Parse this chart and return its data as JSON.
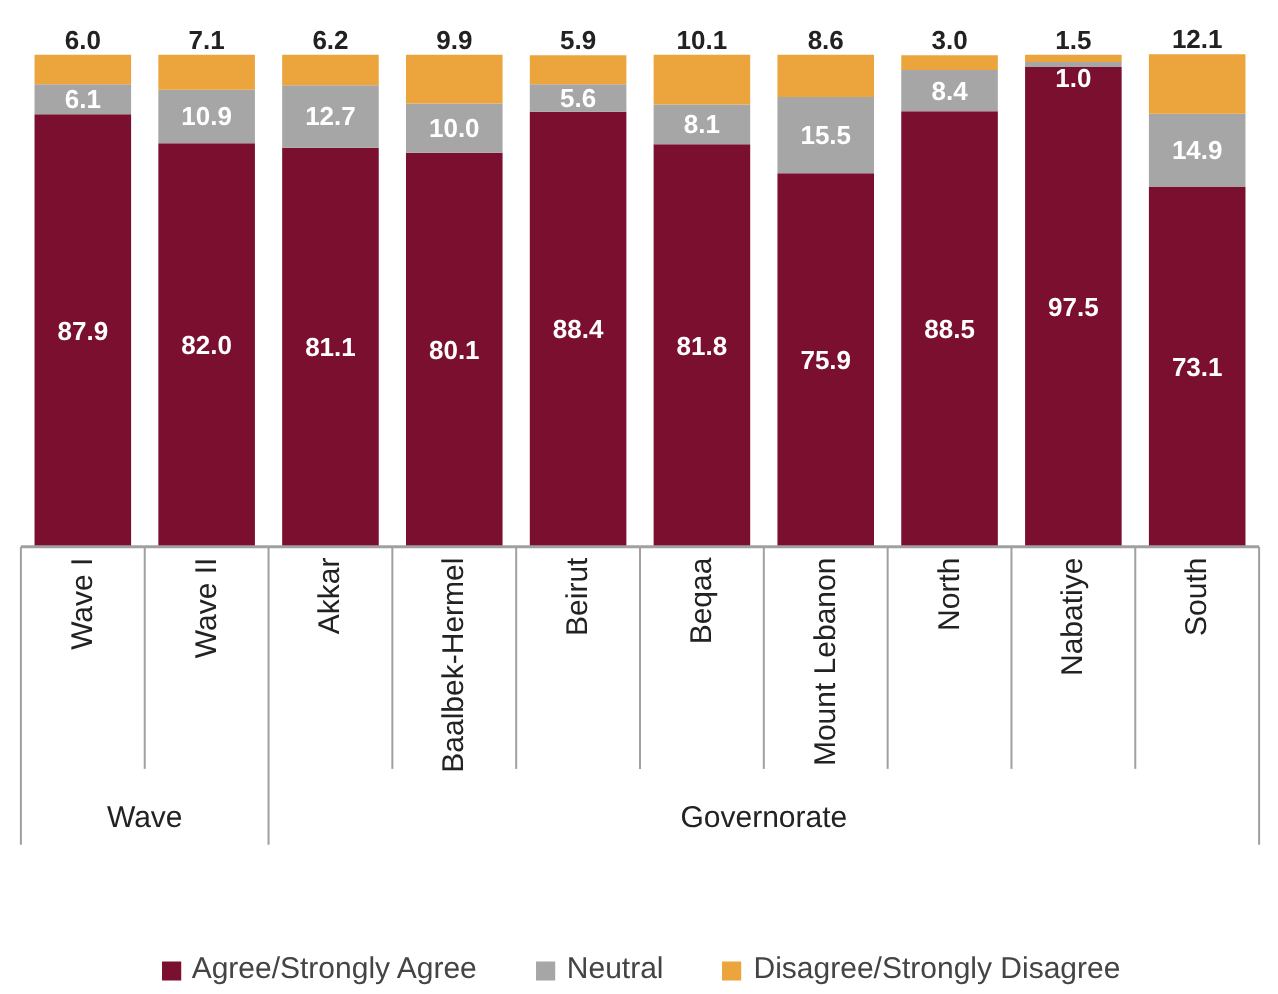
{
  "chart_data": {
    "type": "bar",
    "stacked": true,
    "grid": false,
    "legend": "bottom",
    "categories": [
      "Wave I",
      "Wave II",
      "Akkar",
      "Baalbek-Hermel",
      "Beirut",
      "Beqaa",
      "Mount Lebanon",
      "North",
      "Nabatiye",
      "South"
    ],
    "series": [
      {
        "name": "Agree/Strongly Agree",
        "color": "#7a0f2f",
        "values": [
          87.9,
          82.0,
          81.1,
          80.1,
          88.4,
          81.8,
          75.9,
          88.5,
          97.5,
          73.1
        ],
        "value_labels": [
          "87.9",
          "82.0",
          "81.1",
          "80.1",
          "88.4",
          "81.8",
          "75.9",
          "88.5",
          "97.5",
          "73.1"
        ]
      },
      {
        "name": "Neutral",
        "color": "#a6a6a6",
        "values": [
          6.1,
          10.9,
          12.7,
          10.0,
          5.6,
          8.1,
          15.5,
          8.4,
          1.0,
          14.9
        ],
        "value_labels": [
          "6.1",
          "10.9",
          "12.7",
          "10.0",
          "5.6",
          "8.1",
          "15.5",
          "8.4",
          "1.0",
          "14.9"
        ]
      },
      {
        "name": "Disagree/Strongly Disagree",
        "color": "#eba53c",
        "values": [
          6.0,
          7.1,
          6.2,
          9.9,
          5.9,
          10.1,
          8.6,
          3.0,
          1.5,
          12.1
        ],
        "value_labels": [
          "6.0",
          "7.1",
          "6.2",
          "9.9",
          "5.9",
          "10.1",
          "8.6",
          "3.0",
          "1.5",
          "12.1"
        ]
      }
    ],
    "annotations": [
      "Wave",
      "Governorate"
    ]
  }
}
